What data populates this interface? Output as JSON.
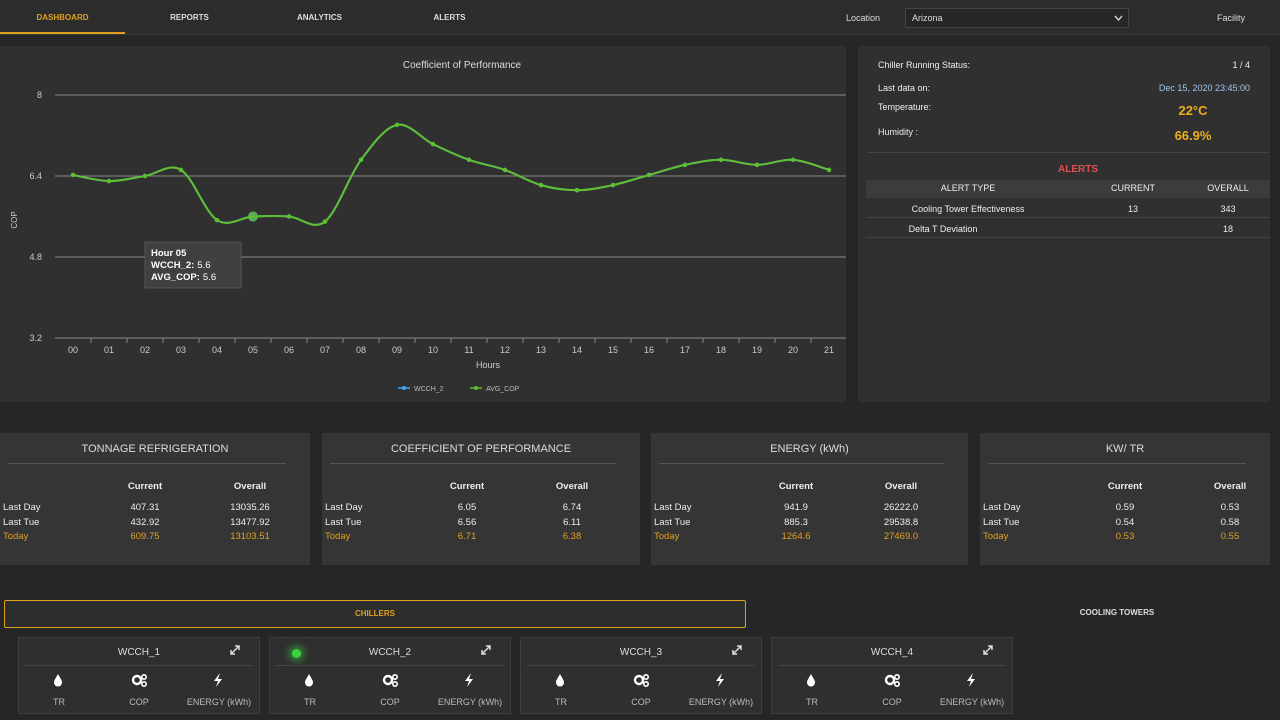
{
  "nav": {
    "tabs": [
      "DASHBOARD",
      "REPORTS",
      "ANALYTICS",
      "ALERTS"
    ],
    "location_label": "Location",
    "location": "Arizona",
    "facility": "Facility"
  },
  "chart_data": {
    "type": "line",
    "title": "Coefficient of Performance",
    "y_label": "COP",
    "x_label": "Hours",
    "categories": [
      "00",
      "01",
      "02",
      "03",
      "04",
      "05",
      "06",
      "07",
      "08",
      "09",
      "10",
      "11",
      "12",
      "13",
      "14",
      "15",
      "16",
      "17",
      "18",
      "19",
      "20",
      "21"
    ],
    "series": [
      {
        "name": "WCCH_2",
        "color": "#3fa9f5",
        "values": [
          6.42,
          6.3,
          6.4,
          6.52,
          5.53,
          5.6,
          5.6,
          5.5,
          6.72,
          7.41,
          7.03,
          6.72,
          6.52,
          6.22,
          6.12,
          6.22,
          6.42,
          6.62,
          6.72,
          6.62,
          6.72,
          6.52
        ]
      },
      {
        "name": "AVG_COP",
        "color": "#5fbf2f",
        "values": [
          6.42,
          6.3,
          6.4,
          6.52,
          5.53,
          5.6,
          5.6,
          5.5,
          6.72,
          7.41,
          7.03,
          6.72,
          6.52,
          6.22,
          6.12,
          6.22,
          6.42,
          6.62,
          6.72,
          6.62,
          6.72,
          6.52
        ]
      }
    ],
    "ylim": [
      3.2,
      8
    ],
    "yticks": [
      3.2,
      4.8,
      6.4,
      8
    ],
    "grid": true,
    "tooltip": {
      "title": "Hour 05",
      "labels": [
        "WCCH_2:",
        "AVG_COP:"
      ]
    }
  },
  "status": {
    "rows": [
      {
        "label": "Chiller Running Status:",
        "value": "1 / 4"
      },
      {
        "label": "Last data on:",
        "value": "Dec 15, 2020 23:45:00"
      },
      {
        "label": "Temperature:",
        "value": "22°C"
      },
      {
        "label": "Humidity :",
        "value": "66.9%"
      }
    ]
  },
  "alerts": {
    "title": "ALERTS",
    "header": [
      "ALERT TYPE",
      "CURRENT",
      "OVERALL"
    ],
    "rows": [
      {
        "type": "Cooling Tower Effectiveness",
        "current": "13",
        "overall": "343"
      },
      {
        "type": "Delta T Deviation",
        "overall": "18"
      }
    ]
  },
  "kpi_columns": [
    "Current",
    "Overall"
  ],
  "kpi_rows": [
    "Last Day",
    "Last Tue",
    "Today"
  ],
  "kpis": [
    {
      "title": "TONNAGE REFRIGERATION",
      "values": [
        [
          "407.31",
          "13035.26"
        ],
        [
          "432.92",
          "13477.92"
        ],
        [
          "609.75",
          "13103.51"
        ]
      ]
    },
    {
      "title": "COEFFICIENT OF PERFORMANCE",
      "values": [
        [
          "6.05",
          "6.74"
        ],
        [
          "6.56",
          "6.11"
        ],
        [
          "6.71",
          "6.38"
        ]
      ]
    },
    {
      "title": "ENERGY (kWh)",
      "values": [
        [
          "941.9",
          "26222.0"
        ],
        [
          "885.3",
          "29538.8"
        ],
        [
          "1264.6",
          "27469.0"
        ]
      ]
    },
    {
      "title": "KW/ TR",
      "values": [
        [
          "0.59",
          "0.53"
        ],
        [
          "0.54",
          "0.58"
        ],
        [
          "0.53",
          "0.55"
        ]
      ]
    }
  ],
  "equipment_tabs": [
    "CHILLERS",
    "COOLING TOWERS"
  ],
  "chillers": [
    "WCCH_1",
    "WCCH_2",
    "WCCH_3",
    "WCCH_4"
  ],
  "chiller_metrics": [
    "TR",
    "COP",
    "ENERGY (kWh)"
  ]
}
